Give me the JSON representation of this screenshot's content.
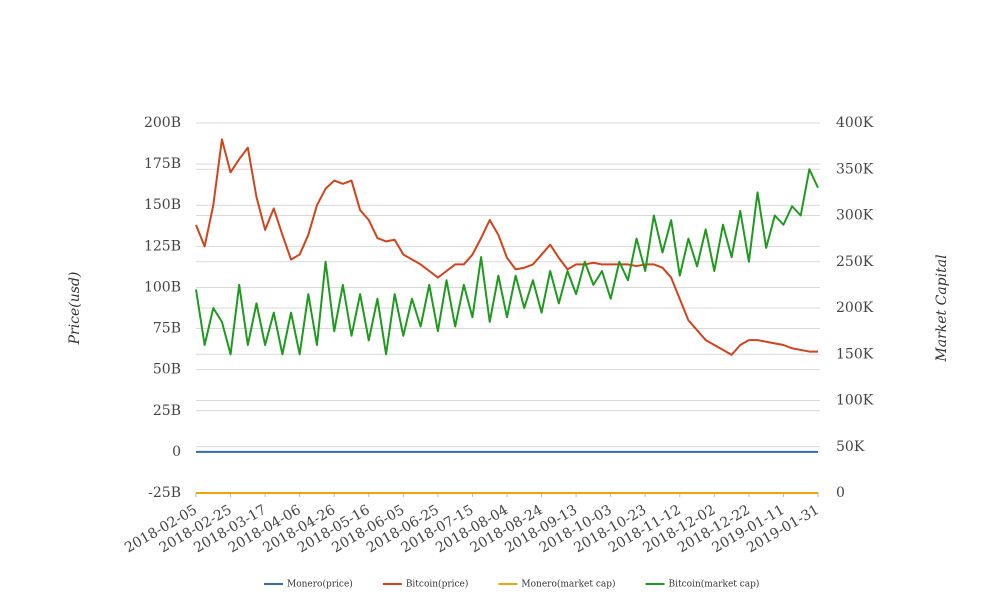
{
  "chart_data": {
    "type": "line",
    "x": [
      "2018-02-05",
      "2018-02-10",
      "2018-02-15",
      "2018-02-20",
      "2018-02-25",
      "2018-03-02",
      "2018-03-07",
      "2018-03-12",
      "2018-03-17",
      "2018-03-22",
      "2018-03-27",
      "2018-04-01",
      "2018-04-06",
      "2018-04-11",
      "2018-04-16",
      "2018-04-21",
      "2018-04-26",
      "2018-05-01",
      "2018-05-06",
      "2018-05-11",
      "2018-05-16",
      "2018-05-21",
      "2018-05-26",
      "2018-05-31",
      "2018-06-05",
      "2018-06-10",
      "2018-06-15",
      "2018-06-20",
      "2018-06-25",
      "2018-06-30",
      "2018-07-05",
      "2018-07-10",
      "2018-07-15",
      "2018-07-20",
      "2018-07-25",
      "2018-07-30",
      "2018-08-04",
      "2018-08-09",
      "2018-08-14",
      "2018-08-19",
      "2018-08-24",
      "2018-08-29",
      "2018-09-03",
      "2018-09-08",
      "2018-09-13",
      "2018-09-18",
      "2018-09-23",
      "2018-09-28",
      "2018-10-03",
      "2018-10-08",
      "2018-10-13",
      "2018-10-18",
      "2018-10-23",
      "2018-10-28",
      "2018-11-02",
      "2018-11-07",
      "2018-11-12",
      "2018-11-17",
      "2018-11-22",
      "2018-11-27",
      "2018-12-02",
      "2018-12-07",
      "2018-12-12",
      "2018-12-17",
      "2018-12-22",
      "2018-12-27",
      "2019-01-01",
      "2019-01-06",
      "2019-01-11",
      "2019-01-16",
      "2019-01-21",
      "2019-01-26",
      "2019-01-31"
    ],
    "xticks": [
      "2018-02-05",
      "2018-02-25",
      "2018-03-17",
      "2018-04-06",
      "2018-04-26",
      "2018-05-16",
      "2018-06-05",
      "2018-06-25",
      "2018-07-15",
      "2018-08-04",
      "2018-08-24",
      "2018-09-13",
      "2018-10-03",
      "2018-10-23",
      "2018-11-12",
      "2018-12-02",
      "2018-12-22",
      "2019-01-11",
      "2019-01-31"
    ],
    "ylim": [
      -25,
      200
    ],
    "yticks": [
      {
        "value": -25,
        "label": "-25B"
      },
      0,
      {
        "value": 25,
        "label": "25B"
      },
      {
        "value": 50,
        "label": "50B"
      },
      {
        "value": 75,
        "label": "75B"
      },
      {
        "value": 100,
        "label": "100B"
      },
      {
        "value": 125,
        "label": "125B"
      },
      {
        "value": 150,
        "label": "150B"
      },
      {
        "value": 175,
        "label": "175B"
      },
      {
        "value": 200,
        "label": "200B"
      }
    ],
    "y2lim": [
      0,
      400
    ],
    "y2ticks": [
      0,
      {
        "value": 50,
        "label": "50K"
      },
      {
        "value": 100,
        "label": "100K"
      },
      {
        "value": 150,
        "label": "150K"
      },
      {
        "value": 200,
        "label": "200K"
      },
      {
        "value": 250,
        "label": "250K"
      },
      {
        "value": 300,
        "label": "300K"
      },
      {
        "value": 350,
        "label": "350K"
      },
      {
        "value": 400,
        "label": "400K"
      }
    ],
    "y_label": "Price(usd)",
    "y2_label": "Market Capital",
    "grid": true,
    "legend": "bottom",
    "series": [
      {
        "name": "Monero(price)",
        "color": "#2f6fad",
        "values": [
          0,
          0,
          0,
          0,
          0,
          0,
          0,
          0,
          0,
          0,
          0,
          0,
          0,
          0,
          0,
          0,
          0,
          0,
          0,
          0,
          0,
          0,
          0,
          0,
          0,
          0,
          0,
          0,
          0,
          0,
          0,
          0,
          0,
          0,
          0,
          0,
          0,
          0,
          0,
          0,
          0,
          0,
          0,
          0,
          0,
          0,
          0,
          0,
          0,
          0,
          0,
          0,
          0,
          0,
          0,
          0,
          0,
          0,
          0,
          0,
          0,
          0,
          0,
          0,
          0,
          0,
          0,
          0,
          0,
          0,
          0,
          0,
          0
        ]
      },
      {
        "name": "Bitcoin(price)",
        "color": "#d1441b",
        "values": [
          138,
          125,
          150,
          190,
          170,
          178,
          185,
          155,
          135,
          148,
          132,
          117,
          120,
          132,
          150,
          160,
          165,
          163,
          165,
          147,
          141,
          130,
          128,
          129,
          120,
          117,
          114,
          110,
          106,
          110,
          114,
          114,
          120,
          130,
          141,
          132,
          118,
          111,
          112,
          114,
          120,
          126,
          118,
          111,
          114,
          114,
          115,
          114,
          114,
          114,
          114,
          113,
          114,
          114,
          112,
          106,
          93,
          80,
          74,
          68,
          65,
          62,
          59,
          65,
          68,
          68,
          67,
          66,
          65,
          63,
          62,
          61,
          61
        ]
      },
      {
        "name": "Monero(market cap)",
        "color": "#f0a30a",
        "axis": "y2",
        "values": [
          0,
          0,
          0,
          0,
          0,
          0,
          0,
          0,
          0,
          0,
          0,
          0,
          0,
          0,
          0,
          0,
          0,
          0,
          0,
          0,
          0,
          0,
          0,
          0,
          0,
          0,
          0,
          0,
          0,
          0,
          0,
          0,
          0,
          0,
          0,
          0,
          0,
          0,
          0,
          0,
          0,
          0,
          0,
          0,
          0,
          0,
          0,
          0,
          0,
          0,
          0,
          0,
          0,
          0,
          0,
          0,
          0,
          0,
          0,
          0,
          0,
          0,
          0,
          0,
          0,
          0,
          0,
          0,
          0,
          0,
          0,
          0,
          0
        ]
      },
      {
        "name": "Bitcoin(market cap)",
        "color": "#1e9a1e",
        "axis": "y2",
        "values": [
          220,
          160,
          200,
          185,
          150,
          225,
          160,
          205,
          160,
          195,
          150,
          195,
          150,
          215,
          160,
          250,
          175,
          225,
          170,
          215,
          165,
          210,
          150,
          215,
          170,
          210,
          180,
          225,
          175,
          230,
          180,
          225,
          190,
          255,
          185,
          235,
          190,
          235,
          200,
          230,
          195,
          240,
          205,
          240,
          215,
          250,
          225,
          240,
          210,
          250,
          230,
          275,
          240,
          300,
          260,
          295,
          235,
          275,
          245,
          285,
          240,
          290,
          255,
          305,
          250,
          325,
          265,
          300,
          290,
          310,
          300,
          350,
          330
        ]
      }
    ]
  }
}
